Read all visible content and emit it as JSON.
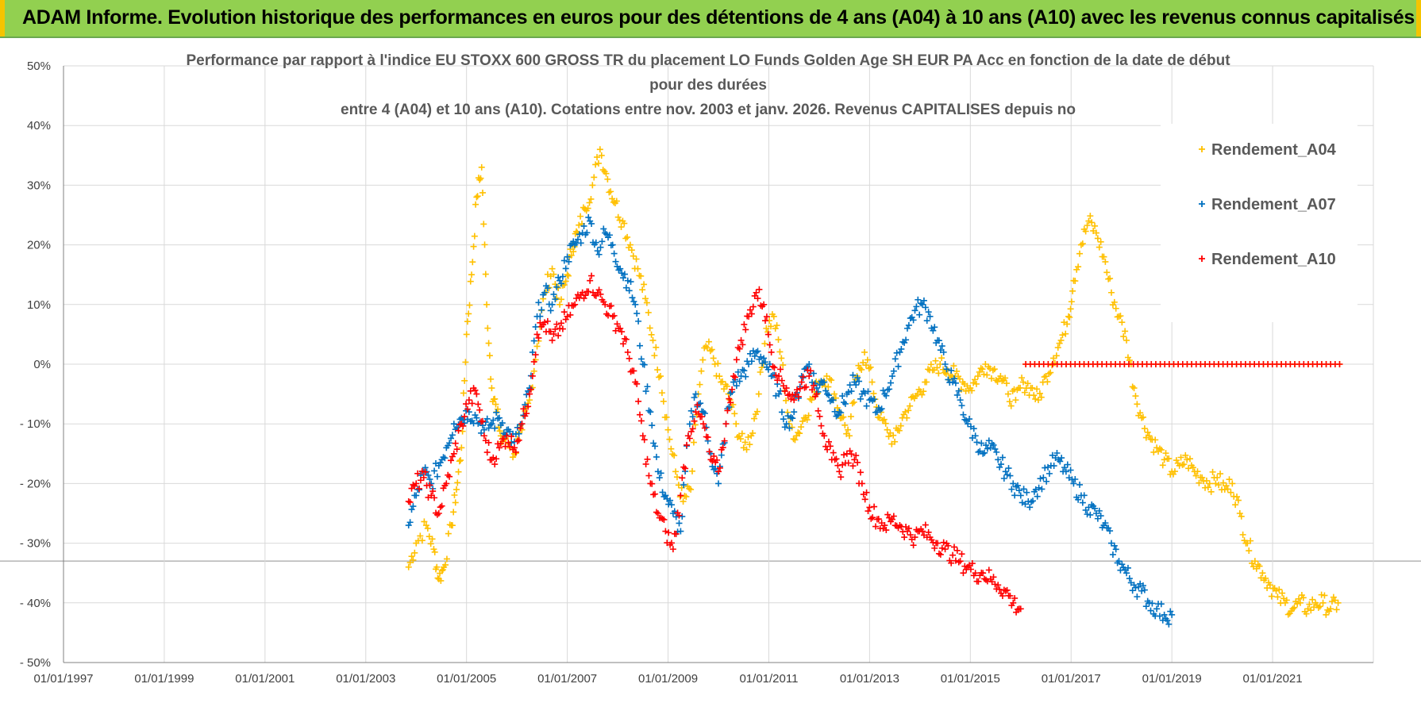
{
  "banner": {
    "text": "ADAM Informe. Evolution historique des performances en euros pour des détentions de 4 ans (A04) à 10 ans (A10) avec les revenus connus capitalisés"
  },
  "colors": {
    "banner_bg": "#92d050",
    "banner_edge": "#f5c400",
    "A04": "#ffc000",
    "A07": "#0070c0",
    "A10": "#ff0000",
    "grid": "#d9d9d9"
  },
  "chart_data": {
    "type": "scatter",
    "title_lines": [
      "Performance par rapport à l'indice EU STOXX 600 GROSS TR  du placement LO Funds Golden Age SH EUR PA Acc en fonction de la date de début",
      "pour des durées",
      "entre 4 (A04) et 10 ans (A10). Cotations entre nov. 2003 et janv. 2026. Revenus CAPITALISES depuis no"
    ],
    "x_ticks": [
      "01/01/1997",
      "01/01/1999",
      "01/01/2001",
      "01/01/2003",
      "01/01/2005",
      "01/01/2007",
      "01/01/2009",
      "01/01/2011",
      "01/01/2013",
      "01/01/2015",
      "01/01/2017",
      "01/01/2019",
      "01/01/2021"
    ],
    "x_range": [
      1997.0,
      2023.0
    ],
    "y_ticks": [
      "50%",
      "40%",
      "30%",
      "20%",
      "10%",
      "0%",
      "- 10%",
      "- 20%",
      "- 30%",
      "- 40%",
      "- 50%"
    ],
    "ylim": [
      -50,
      50
    ],
    "marker": "+",
    "legend_position": "top-right",
    "series": [
      {
        "name": "Rendement_A04",
        "color": "#ffc000",
        "x": [
          2003.85,
          2004.0,
          2004.2,
          2004.35,
          2004.45,
          2004.55,
          2004.7,
          2004.8,
          2004.9,
          2005.0,
          2005.1,
          2005.2,
          2005.3,
          2005.4,
          2005.5,
          2005.6,
          2005.7,
          2005.8,
          2005.95,
          2006.1,
          2006.25,
          2006.4,
          2006.55,
          2006.7,
          2006.85,
          2007.0,
          2007.1,
          2007.2,
          2007.35,
          2007.5,
          2007.65,
          2007.8,
          2007.95,
          2008.1,
          2008.25,
          2008.4,
          2008.55,
          2008.7,
          2008.85,
          2009.0,
          2009.15,
          2009.3,
          2009.45,
          2009.6,
          2009.75,
          2009.9,
          2010.05,
          2010.2,
          2010.35,
          2010.5,
          2010.65,
          2010.8,
          2010.95,
          2011.1,
          2011.25,
          2011.4,
          2011.55,
          2011.7,
          2011.85,
          2012.0,
          2012.15,
          2012.3,
          2012.45,
          2012.6,
          2012.75,
          2012.9,
          2013.05,
          2013.2,
          2013.35,
          2013.5,
          2013.65,
          2013.8,
          2013.95,
          2014.1,
          2014.25,
          2014.4,
          2014.55,
          2014.7,
          2014.85,
          2015.0,
          2015.15,
          2015.3,
          2015.45,
          2015.6,
          2015.75,
          2015.9,
          2016.05,
          2016.2,
          2016.35,
          2016.5,
          2016.65,
          2016.8,
          2016.95,
          2017.05,
          2017.2,
          2017.35,
          2017.5,
          2017.65,
          2017.8,
          2017.95,
          2018.1,
          2018.25,
          2018.4,
          2018.55,
          2018.7,
          2018.85,
          2019.0,
          2019.15,
          2019.3,
          2019.45,
          2019.6,
          2019.75,
          2019.9,
          2020.05,
          2020.2,
          2020.35,
          2020.5,
          2020.65,
          2020.8,
          2020.95,
          2021.1,
          2021.25,
          2021.4,
          2021.55,
          2021.7,
          2021.85,
          2022.0,
          2022.15,
          2022.3
        ],
        "y": [
          -34,
          -30,
          -27,
          -31,
          -36,
          -34,
          -27,
          -21,
          -14,
          5,
          15,
          28,
          33,
          10,
          -4,
          -8,
          -13,
          -12,
          -15,
          -11,
          -6,
          3,
          12,
          16,
          10,
          15,
          20,
          22,
          26,
          30,
          36,
          31,
          27,
          24,
          20,
          16,
          11,
          4,
          -2,
          -11,
          -18,
          -23,
          -21,
          -5,
          3,
          1,
          -3,
          -5,
          -10,
          -14,
          -12,
          -5,
          6,
          8,
          1,
          -10,
          -12,
          -9,
          -6,
          -3,
          -2,
          -5,
          -9,
          -12,
          -2,
          2,
          -3,
          -9,
          -11,
          -13,
          -9,
          -7,
          -5,
          -3,
          -1,
          0,
          -1,
          -2,
          -3,
          -4,
          -2,
          0,
          -1,
          -2,
          -5,
          -6,
          -3,
          -4,
          -6,
          -2,
          1,
          4,
          8,
          14,
          20,
          24,
          22,
          18,
          12,
          8,
          4,
          -4,
          -9,
          -12,
          -14,
          -16,
          -18,
          -17,
          -16,
          -18,
          -19,
          -20,
          -19,
          -21,
          -20,
          -25,
          -30,
          -33,
          -35,
          -37,
          -39,
          -40,
          -41,
          -40,
          -41,
          -40,
          -40,
          -41,
          -40
        ],
        "x_zero": [
          2016.1,
          2022.33
        ]
      },
      {
        "name": "Rendement_A07",
        "color": "#0070c0",
        "x": [
          2003.85,
          2004.0,
          2004.15,
          2004.3,
          2004.45,
          2004.6,
          2004.75,
          2004.9,
          2005.05,
          2005.2,
          2005.35,
          2005.5,
          2005.65,
          2005.8,
          2005.95,
          2006.1,
          2006.25,
          2006.4,
          2006.55,
          2006.7,
          2006.85,
          2007.0,
          2007.15,
          2007.3,
          2007.45,
          2007.6,
          2007.75,
          2007.9,
          2008.05,
          2008.2,
          2008.35,
          2008.5,
          2008.65,
          2008.8,
          2008.95,
          2009.1,
          2009.25,
          2009.4,
          2009.55,
          2009.7,
          2009.85,
          2010.0,
          2010.15,
          2010.3,
          2010.45,
          2010.6,
          2010.75,
          2010.9,
          2011.05,
          2011.2,
          2011.35,
          2011.5,
          2011.65,
          2011.8,
          2011.95,
          2012.1,
          2012.25,
          2012.4,
          2012.55,
          2012.7,
          2012.85,
          2013.0,
          2013.15,
          2013.3,
          2013.45,
          2013.6,
          2013.75,
          2013.9,
          2014.05,
          2014.2,
          2014.35,
          2014.5,
          2014.65,
          2014.8,
          2014.95,
          2015.1,
          2015.25,
          2015.4,
          2015.55,
          2015.7,
          2015.85,
          2016.0,
          2016.15,
          2016.3,
          2016.45,
          2016.6,
          2016.75,
          2016.9,
          2017.05,
          2017.2,
          2017.35,
          2017.5,
          2017.65,
          2017.8,
          2017.95,
          2018.1,
          2018.25,
          2018.4,
          2018.55,
          2018.7,
          2018.85,
          2019.0
        ],
        "y": [
          -27,
          -22,
          -18,
          -20,
          -17,
          -14,
          -10,
          -9,
          -8,
          -9,
          -11,
          -10,
          -9,
          -11,
          -13,
          -10,
          -4,
          8,
          12,
          10,
          14,
          18,
          20,
          22,
          24,
          19,
          22,
          20,
          16,
          14,
          10,
          0,
          -8,
          -18,
          -22,
          -25,
          -28,
          -12,
          -5,
          -8,
          -15,
          -20,
          -10,
          -3,
          -2,
          0,
          2,
          1,
          -2,
          -5,
          -10,
          -8,
          -2,
          0,
          -4,
          -3,
          -6,
          -8,
          -5,
          -3,
          -5,
          -6,
          -8,
          -5,
          -2,
          2,
          6,
          9,
          10,
          8,
          4,
          0,
          -3,
          -6,
          -10,
          -12,
          -15,
          -14,
          -16,
          -18,
          -20,
          -22,
          -23,
          -21,
          -19,
          -17,
          -16,
          -18,
          -20,
          -22,
          -24,
          -25,
          -27,
          -30,
          -33,
          -35,
          -37,
          -38,
          -40,
          -41,
          -42,
          -42
        ]
      },
      {
        "name": "Rendement_A10",
        "color": "#ff0000",
        "x": [
          2003.85,
          2004.0,
          2004.15,
          2004.3,
          2004.45,
          2004.6,
          2004.75,
          2004.9,
          2005.05,
          2005.2,
          2005.35,
          2005.5,
          2005.65,
          2005.8,
          2005.95,
          2006.1,
          2006.25,
          2006.4,
          2006.55,
          2006.7,
          2006.85,
          2007.0,
          2007.15,
          2007.3,
          2007.45,
          2007.6,
          2007.75,
          2007.9,
          2008.05,
          2008.2,
          2008.35,
          2008.5,
          2008.65,
          2008.8,
          2008.95,
          2009.1,
          2009.25,
          2009.4,
          2009.55,
          2009.7,
          2009.85,
          2010.0,
          2010.15,
          2010.3,
          2010.45,
          2010.6,
          2010.75,
          2010.9,
          2011.05,
          2011.2,
          2011.35,
          2011.5,
          2011.65,
          2011.8,
          2011.95,
          2012.1,
          2012.25,
          2012.4,
          2012.55,
          2012.7,
          2012.85,
          2013.0,
          2013.15,
          2013.3,
          2013.45,
          2013.6,
          2013.75,
          2013.9,
          2014.05,
          2014.2,
          2014.35,
          2014.5,
          2014.65,
          2014.8,
          2014.95,
          2015.1,
          2015.25,
          2015.4,
          2015.55,
          2015.7,
          2015.85,
          2016.0
        ],
        "y": [
          -23,
          -20,
          -19,
          -22,
          -25,
          -20,
          -15,
          -10,
          -6,
          -5,
          -12,
          -16,
          -14,
          -12,
          -14,
          -10,
          -5,
          5,
          7,
          4,
          6,
          8,
          10,
          12,
          14,
          12,
          10,
          8,
          6,
          2,
          -3,
          -12,
          -20,
          -25,
          -28,
          -31,
          -22,
          -12,
          -8,
          -10,
          -16,
          -18,
          -10,
          -2,
          4,
          8,
          12,
          10,
          2,
          -2,
          -4,
          -6,
          -3,
          -2,
          -5,
          -12,
          -16,
          -18,
          -15,
          -16,
          -20,
          -24,
          -26,
          -27,
          -26,
          -27,
          -28,
          -29,
          -28,
          -29,
          -30,
          -31,
          -32,
          -33,
          -34,
          -35,
          -35,
          -36,
          -37,
          -38,
          -40,
          -41
        ],
        "x_zero": [
          2016.1,
          2022.33
        ]
      }
    ]
  }
}
